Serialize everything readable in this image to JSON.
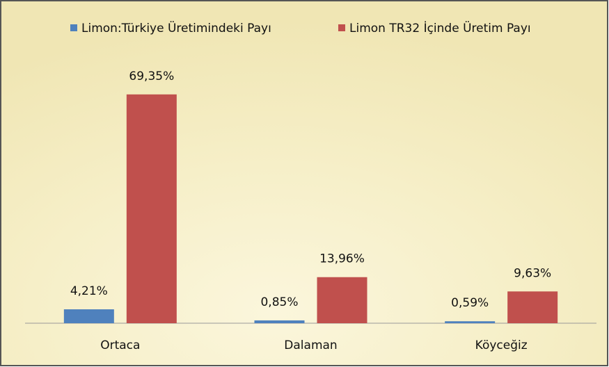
{
  "chart_data": {
    "type": "bar",
    "categories": [
      "Ortaca",
      "Dalaman",
      "Köyceğiz"
    ],
    "series": [
      {
        "name": "Limon:Türkiye Üretimindeki Payı",
        "color": "#4f81bd",
        "values": [
          4.21,
          0.85,
          0.59
        ],
        "value_labels": [
          "4,21%",
          "0,85%",
          "0,59%"
        ]
      },
      {
        "name": "Limon TR32 İçinde Üretim Payı",
        "color": "#c0504d",
        "values": [
          69.35,
          13.96,
          9.63
        ],
        "value_labels": [
          "69,35%",
          "13,96%",
          "9,63%"
        ]
      }
    ],
    "ylim": [
      0,
      75
    ],
    "legend": "top"
  }
}
